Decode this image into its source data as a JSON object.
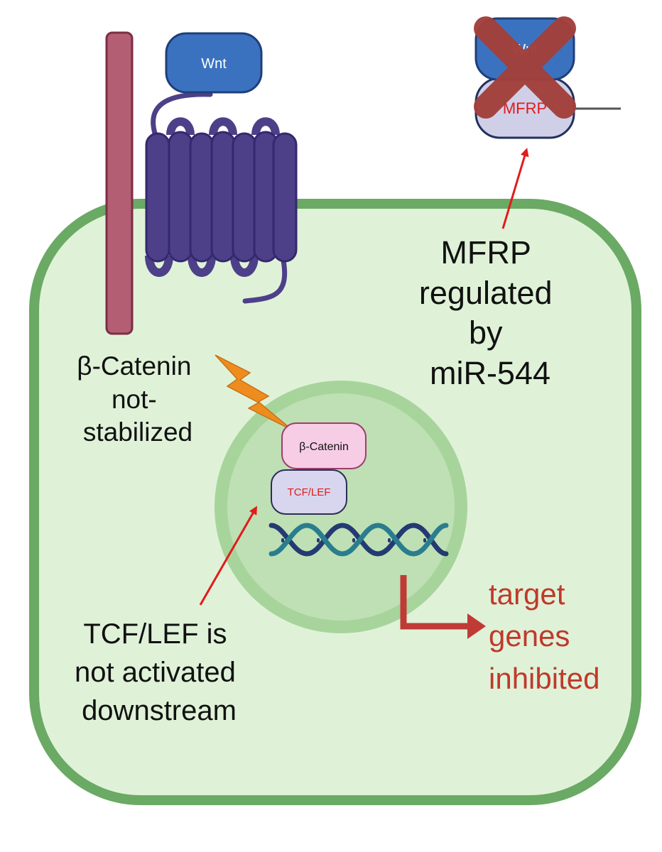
{
  "labels": {
    "wnt": "Wnt",
    "wnt_blocked": "Wnt",
    "mfrp_blocked": "MFRP",
    "beta_catenin_box": "β-Catenin",
    "tcf_lef_box": "TCF/LEF",
    "beta_catenin_note": [
      "β-Catenin",
      "not-",
      "stabilized"
    ],
    "mfrp_note": [
      "MFRP",
      "regulated",
      "by",
      "miR-544"
    ],
    "tcf_note": [
      "TCF/LEF is",
      "not activated",
      "downstream"
    ],
    "target_note": [
      "target",
      "genes",
      "inhibited"
    ]
  },
  "colors": {
    "cell_fill": "#dff2d8",
    "cell_border": "#6aaa64",
    "nucleus_outer": "#a7d49b",
    "nucleus_inner": "#bfe0b4",
    "receptor": "#4d4088",
    "coreceptor": "#b35e72",
    "wnt": "#3b72c0",
    "beta_catenin": "#f7cde6",
    "tcf_lef": "#d7d6ee",
    "red_text": "#c0392b",
    "red_arrow": "#e21b1b",
    "dark_red_arrow": "#c03a36",
    "lightning": "#ee8d1e",
    "dna_dark": "#243a73",
    "dna_teal": "#2a7d8e"
  },
  "icons": {
    "blocked": "x-cross-icon",
    "inhibition": "lightning-bolt-icon",
    "dna": "dna-helix-icon"
  }
}
